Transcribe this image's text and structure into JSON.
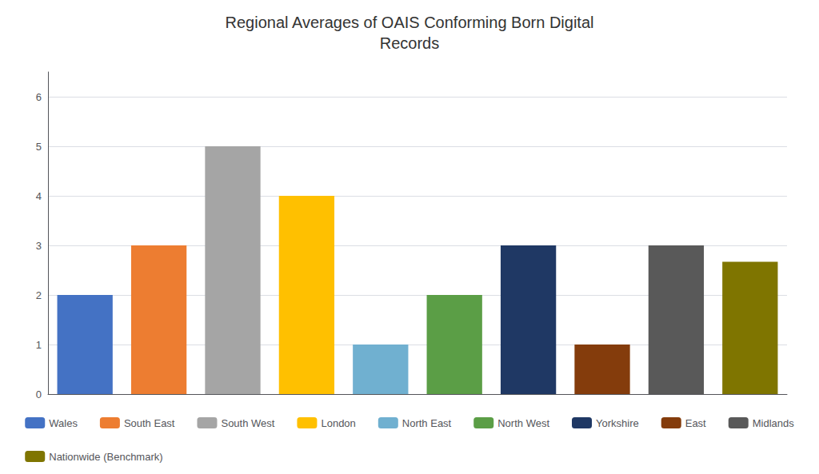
{
  "chart_data": {
    "type": "bar",
    "title": "Regional Averages of OAIS Conforming Born Digital\nRecords",
    "categories": [
      "Wales",
      "South East",
      "South West",
      "London",
      "North East",
      "North West",
      "Yorkshire",
      "East",
      "Midlands",
      "Nationwide (Benchmark)"
    ],
    "values": [
      2,
      3,
      5,
      4,
      1,
      2,
      3,
      1,
      3,
      2.67
    ],
    "colors": [
      "#4472C4",
      "#ED7D31",
      "#A5A5A5",
      "#FFC000",
      "#70B0D0",
      "#5B9E46",
      "#1F3864",
      "#843C0C",
      "#595959",
      "#7F7500"
    ],
    "ylim": [
      0,
      6.5
    ],
    "yticks": [
      0,
      1,
      2,
      3,
      4,
      5,
      6
    ],
    "grid": true,
    "legend": "bottom",
    "tick_labels": "y"
  }
}
